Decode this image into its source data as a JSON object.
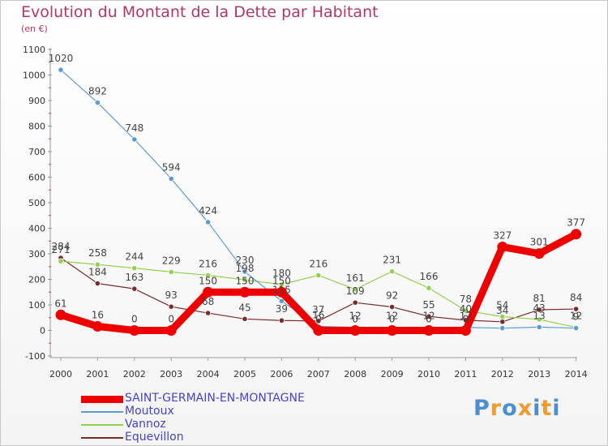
{
  "title": "Evolution du Montant de la Dette par Habitant",
  "subtitle": "(en €)",
  "logo": {
    "text": "Proxiti",
    "colors": [
      "#4a8fd0",
      "#f29a2e",
      "#4a8fd0",
      "#f29a2e",
      "#4a8fd0",
      "#f29a2e",
      "#4a8fd0"
    ]
  },
  "chart_data": {
    "type": "line",
    "title": "Evolution du Montant de la Dette par Habitant",
    "ylabel": "(en €)",
    "xlabel": "",
    "ylim": [
      -100,
      1100
    ],
    "yticks": [
      "-100",
      "0",
      "100",
      "200",
      "300",
      "400",
      "500",
      "600",
      "700",
      "800",
      "900",
      "1000",
      "1100"
    ],
    "categories": [
      "2000",
      "2001",
      "2002",
      "2003",
      "2004",
      "2005",
      "2006",
      "2007",
      "2008",
      "2009",
      "2010",
      "2011",
      "2012",
      "2013",
      "2014"
    ],
    "grid": false,
    "legend_position": "bottom-left",
    "series": [
      {
        "name": "SAINT-GERMAIN-EN-MONTAGNE",
        "color": "#ee0000",
        "values": [
          61,
          16,
          0,
          0,
          150,
          150,
          150,
          0,
          0,
          0,
          0,
          0,
          327,
          301,
          377
        ],
        "labels": [
          "61",
          "16",
          "0",
          "0",
          "150",
          "150",
          "150",
          "0",
          "0",
          "0",
          "0",
          "0",
          "327",
          "301",
          "377"
        ]
      },
      {
        "name": "Moutoux",
        "color": "#5b9bd5",
        "values": [
          1020,
          892,
          748,
          594,
          424,
          230,
          115,
          16,
          12,
          12,
          12,
          12,
          9,
          13,
          9
        ],
        "labels": [
          "1020",
          "892",
          "748",
          "594",
          "424",
          "230",
          "115",
          "16",
          "12",
          "12",
          "12",
          "12",
          "",
          "13",
          "9"
        ]
      },
      {
        "name": "Vannoz",
        "color": "#92d050",
        "values": [
          271,
          258,
          244,
          229,
          216,
          198,
          180,
          216,
          161,
          231,
          166,
          78,
          54,
          43,
          12
        ],
        "labels": [
          "271",
          "258",
          "244",
          "229",
          "216",
          "198",
          "180",
          "216",
          "161",
          "231",
          "166",
          "78",
          "54",
          "43",
          "12"
        ]
      },
      {
        "name": "Equevillon",
        "color": "#7b2a2a",
        "values": [
          284,
          184,
          163,
          93,
          68,
          45,
          39,
          37,
          109,
          92,
          55,
          40,
          34,
          81,
          84
        ],
        "labels": [
          "284",
          "184",
          "163",
          "93",
          "68",
          "45",
          "39",
          "37",
          "109",
          "92",
          "55",
          "40",
          "34",
          "81",
          "84"
        ]
      }
    ]
  }
}
